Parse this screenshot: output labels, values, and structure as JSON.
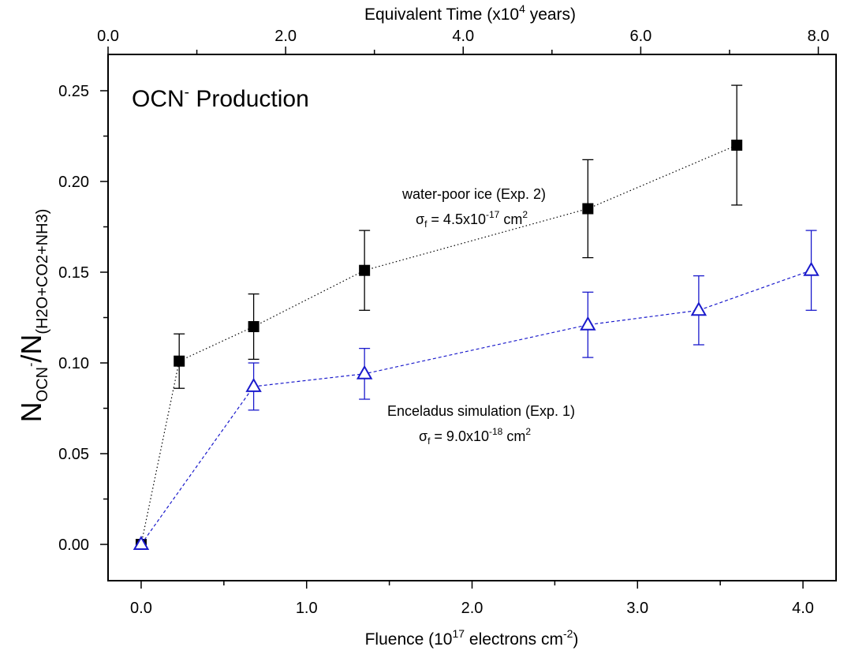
{
  "chart_data": {
    "type": "scatter",
    "title_main": "OCN",
    "title_sup": "-",
    "title_rest": " Production",
    "xlabel": {
      "main": "Fluence (10",
      "sup1": "17",
      "mid": " electrons cm",
      "sup2": "-2",
      "end": ")"
    },
    "ylabel": {
      "n1": "N",
      "sub1": "OCN",
      "sup1": "-",
      "slash": "/N",
      "sub2": "(H2O+CO2+NH3)"
    },
    "x2label": {
      "main": "Equivalent Time (x10",
      "sup": "4",
      "end": " years)"
    },
    "xlim": [
      -0.2,
      4.2
    ],
    "ylim": [
      -0.02,
      0.27
    ],
    "x2lim": [
      0.0,
      8.2
    ],
    "xticks": [
      0.0,
      1.0,
      2.0,
      3.0,
      4.0
    ],
    "xtick_labels": [
      "0.0",
      "1.0",
      "2.0",
      "3.0",
      "4.0"
    ],
    "yticks": [
      0.0,
      0.05,
      0.1,
      0.15,
      0.2,
      0.25
    ],
    "ytick_labels": [
      "0.00",
      "0.05",
      "0.10",
      "0.15",
      "0.20",
      "0.25"
    ],
    "x2ticks": [
      0.0,
      2.0,
      4.0,
      6.0,
      8.0
    ],
    "x2tick_labels": [
      "0.0",
      "2.0",
      "4.0",
      "6.0",
      "8.0"
    ],
    "grid": false,
    "series": [
      {
        "marker": "filled-square",
        "line": "dotted",
        "color": "#000000",
        "x": [
          0.0,
          0.23,
          0.68,
          1.35,
          2.7,
          3.6
        ],
        "y": [
          0.0,
          0.101,
          0.12,
          0.151,
          0.185,
          0.22
        ],
        "err": [
          0.0,
          0.015,
          0.018,
          0.022,
          0.027,
          0.033
        ]
      },
      {
        "marker": "open-triangle",
        "line": "dashed",
        "color": "#1a1acc",
        "x": [
          0.0,
          0.68,
          1.35,
          2.7,
          3.37,
          4.05
        ],
        "y": [
          0.0,
          0.087,
          0.094,
          0.121,
          0.129,
          0.151
        ],
        "err": [
          0.0,
          0.013,
          0.014,
          0.018,
          0.019,
          0.022
        ]
      }
    ],
    "annotations": [
      {
        "line1": "water-poor  ice (Exp. 2)",
        "sigma": "σ",
        "sigma_sub": "f",
        "eq": " = 4.5x10",
        "exp": "-17",
        "unit": "  cm",
        "unit_sup": "2"
      },
      {
        "line1": "Enceladus simulation (Exp. 1)",
        "sigma": "σ",
        "sigma_sub": "f",
        "eq": " = 9.0x10",
        "exp": "-18",
        "unit": "  cm",
        "unit_sup": "2"
      }
    ]
  }
}
